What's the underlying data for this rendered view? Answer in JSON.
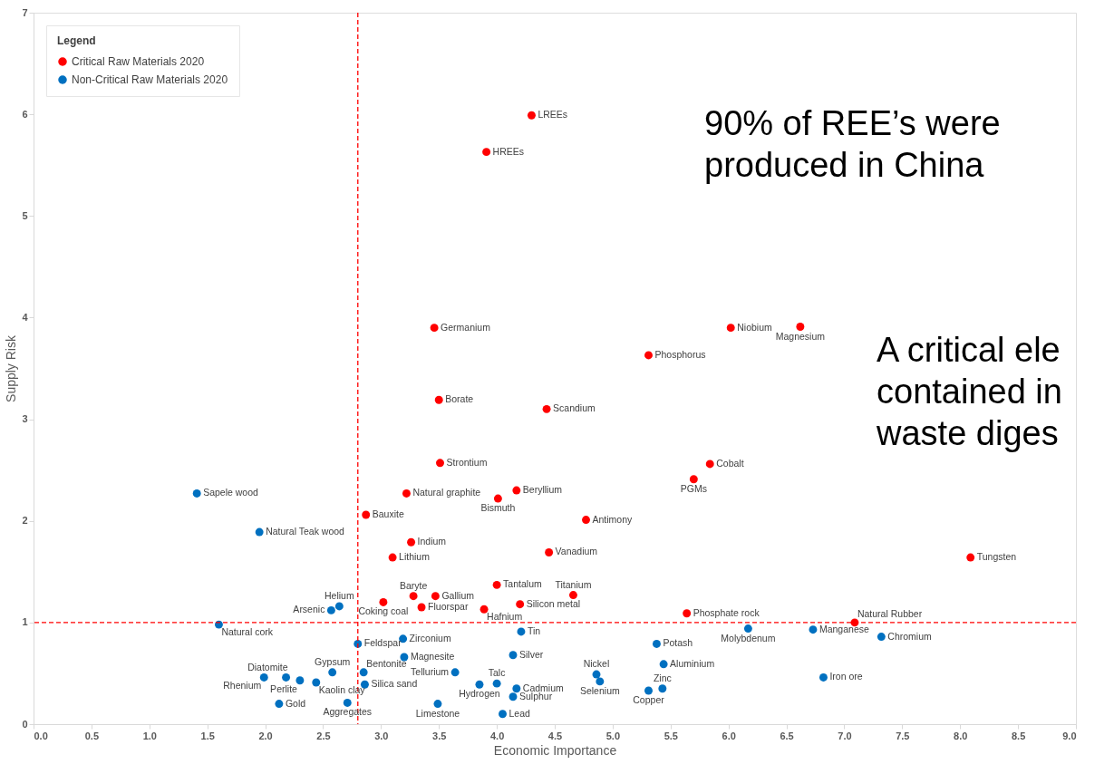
{
  "chart_data": {
    "type": "scatter",
    "xlabel": "Economic Importance",
    "ylabel": "Supply Risk",
    "legend_title": "Legend",
    "legend": "top left",
    "marker": "circle",
    "grid": false,
    "xlim": [
      0,
      9
    ],
    "ylim": [
      0,
      7
    ],
    "xticks": [
      {
        "value": 0,
        "label": "0.0"
      },
      {
        "value": 0.5,
        "label": "0.5"
      },
      {
        "value": 1,
        "label": "1.0"
      },
      {
        "value": 1.5,
        "label": "1.5"
      },
      {
        "value": 2,
        "label": "2.0"
      },
      {
        "value": 2.5,
        "label": "2.5"
      },
      {
        "value": 3,
        "label": "3.0"
      },
      {
        "value": 3.5,
        "label": "3.5"
      },
      {
        "value": 4,
        "label": "4.0"
      },
      {
        "value": 4.5,
        "label": "4.5"
      },
      {
        "value": 5,
        "label": "5.0"
      },
      {
        "value": 5.5,
        "label": "5.5"
      },
      {
        "value": 6,
        "label": "6.0"
      },
      {
        "value": 6.5,
        "label": "6.5"
      },
      {
        "value": 7,
        "label": "7.0"
      },
      {
        "value": 7.5,
        "label": "7.5"
      },
      {
        "value": 8,
        "label": "8.0"
      },
      {
        "value": 8.5,
        "label": "8.5"
      },
      {
        "value": 9,
        "label": "9.0"
      }
    ],
    "yticks": [
      0,
      1,
      2,
      3,
      4,
      5,
      6,
      7
    ],
    "series": [
      {
        "name": "Critical Raw Materials 2020",
        "color": "#ff0000",
        "x": [
          4.3,
          3.91,
          3.46,
          6.02,
          6.62,
          5.31,
          3.5,
          4.43,
          3.51,
          5.84,
          5.7,
          3.22,
          4.17,
          4.01,
          2.87,
          4.77,
          3.26,
          3.1,
          4.45,
          8.09,
          4.0,
          4.66,
          3.28,
          3.47,
          3.02,
          3.35,
          4.2,
          3.89,
          5.64,
          7.09
        ],
        "values": [
          5.99,
          5.63,
          3.9,
          3.9,
          3.91,
          3.63,
          3.19,
          3.1,
          2.57,
          2.56,
          2.41,
          2.27,
          2.3,
          2.22,
          2.06,
          2.01,
          1.79,
          1.64,
          1.69,
          1.64,
          1.37,
          1.27,
          1.26,
          1.26,
          1.2,
          1.15,
          1.18,
          1.13,
          1.09,
          1.0
        ],
        "value_labels": [
          "LREEs",
          "HREEs",
          "Germanium",
          "Niobium",
          "Magnesium",
          "Phosphorus",
          "Borate",
          "Scandium",
          "Strontium",
          "Cobalt",
          "PGMs",
          "Natural graphite",
          "Beryllium",
          "Bismuth",
          "Bauxite",
          "Antimony",
          "Indium",
          "Lithium",
          "Vanadium",
          "Tungsten",
          "Tantalum",
          "Titanium",
          "Baryte",
          "Gallium",
          "Coking coal",
          "Fluorspar",
          "Silicon metal",
          "Hafnium",
          "Phosphate rock",
          "Natural Rubber"
        ]
      },
      {
        "name": "Non-Critical Raw Materials 2020",
        "color": "#0070c0",
        "x": [
          1.41,
          1.95,
          1.6,
          2.64,
          2.57,
          2.8,
          3.19,
          3.2,
          2.58,
          2.85,
          2.18,
          1.99,
          2.3,
          2.44,
          2.86,
          2.12,
          2.71,
          4.21,
          5.38,
          4.14,
          5.44,
          3.64,
          4.86,
          4.89,
          4.0,
          3.85,
          4.17,
          5.31,
          5.43,
          4.14,
          3.49,
          4.05,
          6.17,
          6.73,
          7.32,
          6.82
        ],
        "values": [
          2.27,
          1.89,
          0.98,
          1.16,
          1.12,
          0.79,
          0.84,
          0.66,
          0.51,
          0.51,
          0.46,
          0.46,
          0.43,
          0.41,
          0.39,
          0.2,
          0.21,
          0.91,
          0.79,
          0.68,
          0.59,
          0.51,
          0.49,
          0.42,
          0.4,
          0.39,
          0.35,
          0.33,
          0.35,
          0.27,
          0.2,
          0.1,
          0.94,
          0.93,
          0.86,
          0.46
        ],
        "value_labels": [
          "Sapele wood",
          "Natural Teak wood",
          "Natural cork",
          "Helium",
          "Arsenic",
          "Feldspar",
          "Zirconium",
          "Magnesite",
          "Gypsum",
          "Bentonite",
          "Diatomite",
          "Rhenium",
          "Perlite",
          "Kaolin clay",
          "Silica sand",
          "Gold",
          "Aggregates",
          "Tin",
          "Potash",
          "Silver",
          "Aluminium",
          "Tellurium",
          "Nickel",
          "Selenium",
          "Talc",
          "Hydrogen",
          "Cadmium",
          "Copper",
          "Zinc",
          "Sulphur",
          "Limestone",
          "Lead",
          "Molybdenum",
          "Manganese",
          "Chromium",
          "Iron ore"
        ]
      }
    ],
    "ref_lines": [
      {
        "axis": "x",
        "value": 2.8,
        "color": "#ff0000",
        "line_style": "dashed"
      },
      {
        "axis": "y",
        "value": 1.0,
        "color": "#ff0000",
        "line_style": "dashed"
      }
    ],
    "annotations": [
      "90% of REE’s were\nproduced in China",
      "A critical ele\ncontained in\nwaste diges"
    ]
  }
}
